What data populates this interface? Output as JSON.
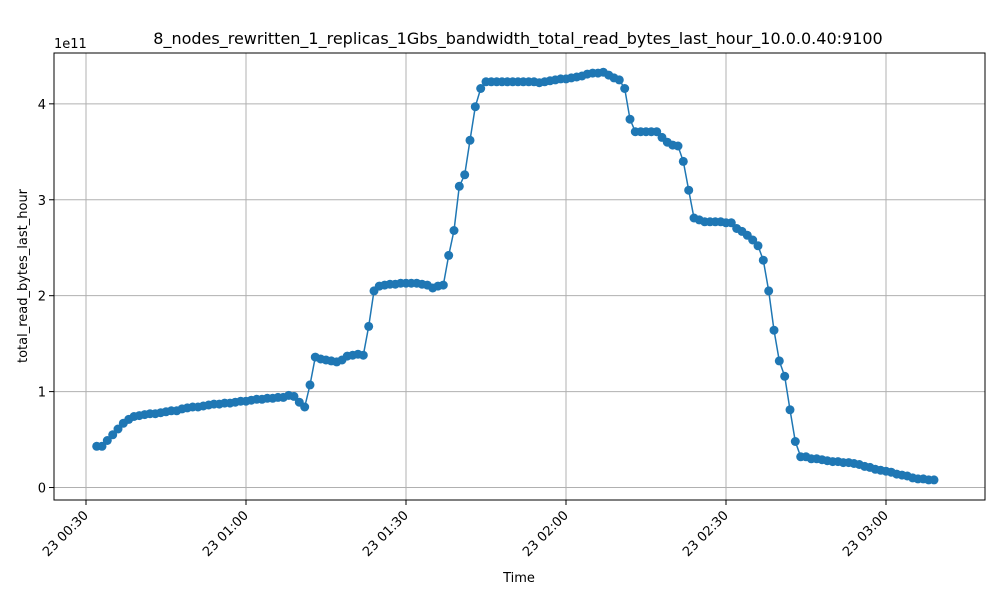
{
  "chart_data": {
    "type": "line",
    "title": "8_nodes_rewritten_1_replicas_1Gbs_bandwidth_total_read_bytes_last_hour_10.0.0.40:9100",
    "xlabel": "Time",
    "ylabel": "total_read_bytes_last_hour",
    "y_offset_label": "1e11",
    "y_scale_exponent": 11,
    "x_start_time": "00:32",
    "x_sample_interval_minutes": 1,
    "x_tick_labels": [
      "23 00:30",
      "23 01:00",
      "23 01:30",
      "23 02:00",
      "23 02:30",
      "23 03:00"
    ],
    "y_tick_labels": [
      "0",
      "1",
      "2",
      "3",
      "4"
    ],
    "ylim": [
      -0.13,
      4.53
    ],
    "grid": true,
    "line_color": "#1f77b4",
    "marker": "circle",
    "series": [
      {
        "values": [
          0.43,
          0.43,
          0.49,
          0.55,
          0.61,
          0.67,
          0.71,
          0.74,
          0.75,
          0.76,
          0.77,
          0.77,
          0.78,
          0.79,
          0.8,
          0.8,
          0.82,
          0.83,
          0.84,
          0.84,
          0.85,
          0.86,
          0.87,
          0.87,
          0.88,
          0.88,
          0.89,
          0.9,
          0.9,
          0.91,
          0.92,
          0.92,
          0.93,
          0.93,
          0.94,
          0.94,
          0.96,
          0.95,
          0.89,
          0.84,
          1.07,
          1.36,
          1.34,
          1.33,
          1.32,
          1.31,
          1.33,
          1.37,
          1.38,
          1.39,
          1.38,
          1.68,
          2.05,
          2.1,
          2.11,
          2.12,
          2.12,
          2.13,
          2.13,
          2.13,
          2.13,
          2.12,
          2.11,
          2.08,
          2.1,
          2.11,
          2.42,
          2.68,
          3.14,
          3.26,
          3.62,
          3.97,
          4.16,
          4.23,
          4.23,
          4.23,
          4.23,
          4.23,
          4.23,
          4.23,
          4.23,
          4.23,
          4.23,
          4.22,
          4.23,
          4.24,
          4.25,
          4.26,
          4.26,
          4.27,
          4.28,
          4.29,
          4.31,
          4.32,
          4.32,
          4.33,
          4.3,
          4.27,
          4.25,
          4.16,
          3.84,
          3.71,
          3.71,
          3.71,
          3.71,
          3.71,
          3.65,
          3.6,
          3.57,
          3.56,
          3.4,
          3.1,
          2.81,
          2.79,
          2.77,
          2.77,
          2.77,
          2.77,
          2.76,
          2.76,
          2.7,
          2.67,
          2.63,
          2.58,
          2.52,
          2.37,
          2.05,
          1.64,
          1.32,
          1.16,
          0.81,
          0.48,
          0.32,
          0.32,
          0.3,
          0.3,
          0.29,
          0.28,
          0.27,
          0.27,
          0.26,
          0.26,
          0.25,
          0.24,
          0.22,
          0.21,
          0.19,
          0.18,
          0.17,
          0.16,
          0.14,
          0.13,
          0.12,
          0.1,
          0.09,
          0.09,
          0.08,
          0.08
        ]
      }
    ]
  }
}
